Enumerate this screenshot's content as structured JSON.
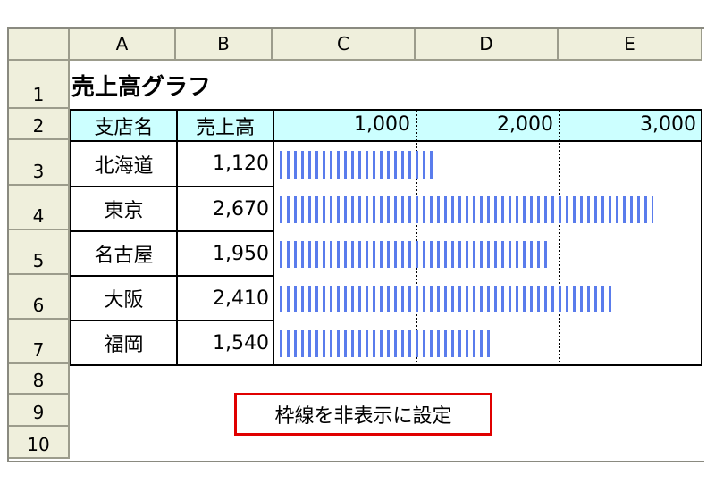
{
  "columns": [
    "A",
    "B",
    "C",
    "D",
    "E"
  ],
  "rows": [
    "1",
    "2",
    "3",
    "4",
    "5",
    "6",
    "7",
    "8",
    "9",
    "10"
  ],
  "title": "売上高グラフ",
  "header": {
    "branch": "支店名",
    "sales": "売上高",
    "ticks": [
      "1,000",
      "2,000",
      "3,000"
    ]
  },
  "chart_data": {
    "type": "bar",
    "categories": [
      "北海道",
      "東京",
      "名古屋",
      "大阪",
      "福岡"
    ],
    "values": [
      1120,
      2670,
      1950,
      2410,
      1540
    ],
    "value_labels": [
      "1,120",
      "2,670",
      "1,950",
      "2,410",
      "1,540"
    ],
    "tick_labels": [
      "1,000",
      "2,000",
      "3,000"
    ],
    "xlim": [
      0,
      3000
    ],
    "orientation": "horizontal",
    "bar_color": "#5a7cec"
  },
  "note": "枠線を非表示に設定",
  "colors": {
    "header_fill": "#ccffff",
    "note_border": "#e00000"
  }
}
